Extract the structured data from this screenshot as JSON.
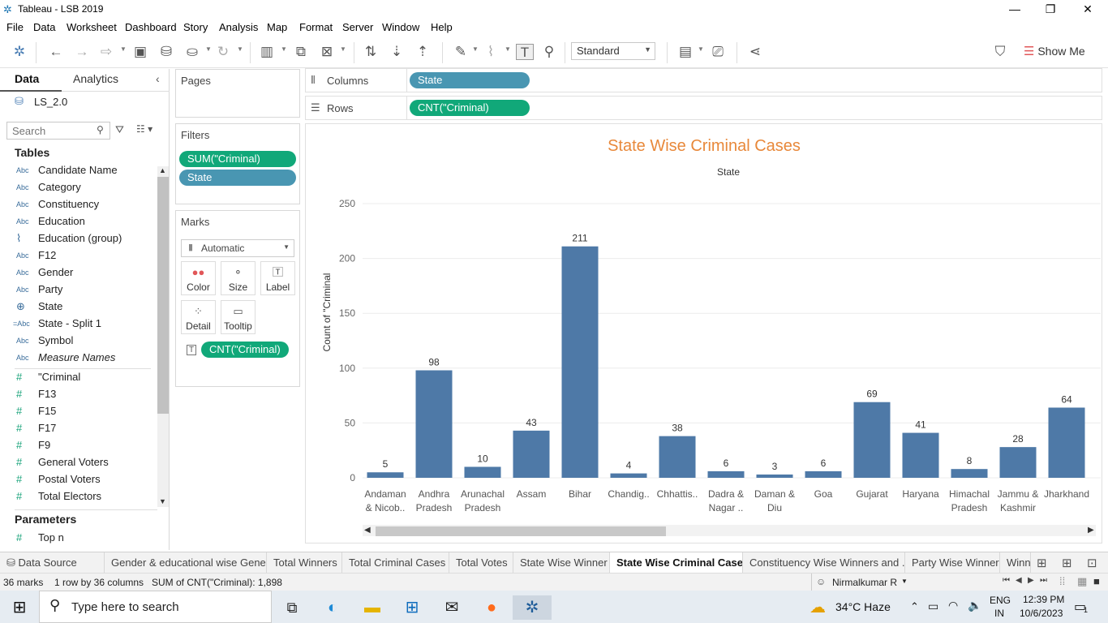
{
  "window": {
    "title": "Tableau - LSB 2019"
  },
  "menu": [
    "File",
    "Data",
    "Worksheet",
    "Dashboard",
    "Story",
    "Analysis",
    "Map",
    "Format",
    "Server",
    "Window",
    "Help"
  ],
  "toolbar": {
    "fit": "Standard",
    "show_me": "Show Me"
  },
  "data_pane": {
    "tabs": [
      "Data",
      "Analytics"
    ],
    "datasource": "LS_2.0",
    "search_placeholder": "Search",
    "tables_title": "Tables",
    "dimension_fields": [
      {
        "icon": "Abc",
        "name": "Candidate Name"
      },
      {
        "icon": "Abc",
        "name": "Category"
      },
      {
        "icon": "Abc",
        "name": "Constituency"
      },
      {
        "icon": "Abc",
        "name": "Education"
      },
      {
        "icon": "paperclip",
        "name": "Education (group)"
      },
      {
        "icon": "Abc",
        "name": "F12"
      },
      {
        "icon": "Abc",
        "name": "Gender"
      },
      {
        "icon": "Abc",
        "name": "Party"
      },
      {
        "icon": "globe",
        "name": "State"
      },
      {
        "icon": "=Abc",
        "name": "State - Split 1"
      },
      {
        "icon": "Abc",
        "name": "Symbol"
      },
      {
        "icon": "Abc",
        "name": "Measure Names"
      }
    ],
    "measure_fields": [
      "\"Criminal",
      "F13",
      "F15",
      "F17",
      "F9",
      "General Voters",
      "Postal Voters",
      "Total Electors"
    ],
    "parameters_title": "Parameters",
    "parameters": [
      "Top n"
    ]
  },
  "cards": {
    "pages_title": "Pages",
    "filters_title": "Filters",
    "filters": [
      "SUM(\"Criminal)",
      "State"
    ],
    "marks_title": "Marks",
    "mark_type": "Automatic",
    "mark_buttons": [
      "Color",
      "Size",
      "Label",
      "Detail",
      "Tooltip"
    ],
    "mark_pill": "CNT(\"Criminal)"
  },
  "shelves": {
    "columns_label": "Columns",
    "columns_pill": "State",
    "rows_label": "Rows",
    "rows_pill": "CNT(\"Criminal)"
  },
  "chart_data": {
    "type": "bar",
    "title": "State Wise Criminal Cases",
    "xlabel": "State",
    "ylabel": "Count of \"Criminal",
    "ylim": [
      0,
      250
    ],
    "yticks": [
      0,
      50,
      100,
      150,
      200,
      250
    ],
    "categories": [
      [
        "Andaman",
        "& Nicob.."
      ],
      [
        "Andhra",
        "Pradesh"
      ],
      [
        "Arunachal",
        "Pradesh"
      ],
      [
        "Assam"
      ],
      [
        "Bihar"
      ],
      [
        "Chandig.."
      ],
      [
        "Chhattis.."
      ],
      [
        "Dadra &",
        "Nagar .."
      ],
      [
        "Daman &",
        "Diu"
      ],
      [
        "Goa"
      ],
      [
        "Gujarat"
      ],
      [
        "Haryana"
      ],
      [
        "Himachal",
        "Pradesh"
      ],
      [
        "Jammu &",
        "Kashmir"
      ],
      [
        "Jharkhand"
      ]
    ],
    "values": [
      5,
      98,
      10,
      43,
      211,
      4,
      38,
      6,
      3,
      6,
      69,
      41,
      8,
      28,
      64
    ],
    "bar_color": "#4e79a7",
    "title_color": "#e8883a",
    "grid": true
  },
  "sheet_tabs": [
    "Data Source",
    "Gender & educational wise Gene...",
    "Total Winners",
    "Total Criminal Cases",
    "Total Votes",
    "State Wise Winner",
    "State Wise Criminal Cases",
    "Constituency Wise Winners and ...",
    "Party Wise Winner",
    "Winn"
  ],
  "active_tab": "State Wise Criminal Cases",
  "status": {
    "marks": "36 marks",
    "dims": "1 row by 36 columns",
    "sum": "SUM of CNT(\"Criminal): 1,898",
    "user": "Nirmalkumar R"
  },
  "taskbar": {
    "search_placeholder": "Type here to search",
    "weather": "34°C  Haze",
    "lang": "ENG",
    "region": "IN",
    "time": "12:39 PM",
    "date": "10/6/2023",
    "notif_count": "1"
  }
}
